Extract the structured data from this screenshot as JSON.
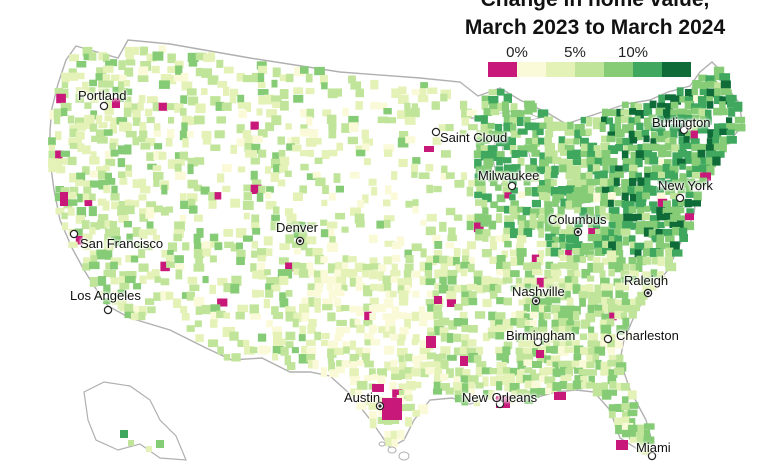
{
  "title": {
    "line1": "Change in home value,",
    "line2": "March 2023 to March 2024"
  },
  "legend": {
    "labels": [
      "0%",
      "5%",
      "10%"
    ],
    "colors": [
      "#c8197a",
      "#fbfad8",
      "#e4f2b8",
      "#c0e59a",
      "#86cc76",
      "#3fa85e",
      "#0f6b37"
    ]
  },
  "colors": {
    "land": "#ffffff",
    "border": "#b0b0b0",
    "nodata": "#ffffff"
  },
  "cities": [
    {
      "name": "Portland",
      "type": "hollow"
    },
    {
      "name": "Saint Cloud",
      "type": "hollow"
    },
    {
      "name": "Burlington",
      "type": "hollow"
    },
    {
      "name": "Milwaukee",
      "type": "hollow"
    },
    {
      "name": "New York",
      "type": "hollow"
    },
    {
      "name": "Denver",
      "type": "capital"
    },
    {
      "name": "San Francisco",
      "type": "hollow"
    },
    {
      "name": "Columbus",
      "type": "capital"
    },
    {
      "name": "Los Angeles",
      "type": "hollow"
    },
    {
      "name": "Nashville",
      "type": "capital"
    },
    {
      "name": "Raleigh",
      "type": "capital"
    },
    {
      "name": "Birmingham",
      "type": "hollow"
    },
    {
      "name": "Charleston",
      "type": "hollow"
    },
    {
      "name": "Austin",
      "type": "capital"
    },
    {
      "name": "New Orleans",
      "type": "hollow"
    },
    {
      "name": "Miami",
      "type": "hollow"
    }
  ]
}
